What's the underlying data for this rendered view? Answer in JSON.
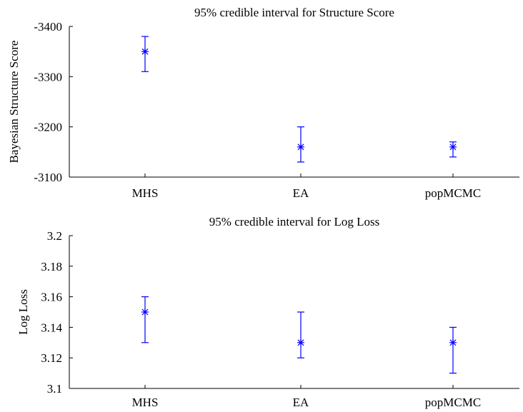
{
  "chart_data": [
    {
      "type": "errorbar",
      "title": "95% credible interval for Structure Score",
      "xlabel": "",
      "ylabel": "Bayesian Structure Score",
      "categories": [
        "MHS",
        "EA",
        "popMCMC"
      ],
      "ylim": [
        -3400,
        -3100
      ],
      "yticks": [
        -3100,
        -3200,
        -3300,
        -3400
      ],
      "ytick_labels": [
        "-3100",
        "-3200",
        "-3300",
        "-3400"
      ],
      "inverted_y": true,
      "grid": false,
      "color": "#0000ff",
      "points": [
        {
          "category": "MHS",
          "value": -3350,
          "lower": -3380,
          "upper": -3310
        },
        {
          "category": "EA",
          "value": -3160,
          "lower": -3200,
          "upper": -3130
        },
        {
          "category": "popMCMC",
          "value": -3160,
          "lower": -3170,
          "upper": -3140
        }
      ]
    },
    {
      "type": "errorbar",
      "title": "95% credible interval for Log Loss",
      "xlabel": "",
      "ylabel": "Log Loss",
      "categories": [
        "MHS",
        "EA",
        "popMCMC"
      ],
      "ylim": [
        3.1,
        3.2
      ],
      "yticks": [
        3.2,
        3.18,
        3.16,
        3.14,
        3.12,
        3.1
      ],
      "ytick_labels": [
        "3.2",
        "3.18",
        "3.16",
        "3.14",
        "3.12",
        "3.1"
      ],
      "inverted_y": false,
      "grid": false,
      "color": "#0000ff",
      "points": [
        {
          "category": "MHS",
          "value": 3.15,
          "lower": 3.13,
          "upper": 3.16
        },
        {
          "category": "EA",
          "value": 3.13,
          "lower": 3.12,
          "upper": 3.15
        },
        {
          "category": "popMCMC",
          "value": 3.13,
          "lower": 3.11,
          "upper": 3.14
        }
      ]
    }
  ]
}
